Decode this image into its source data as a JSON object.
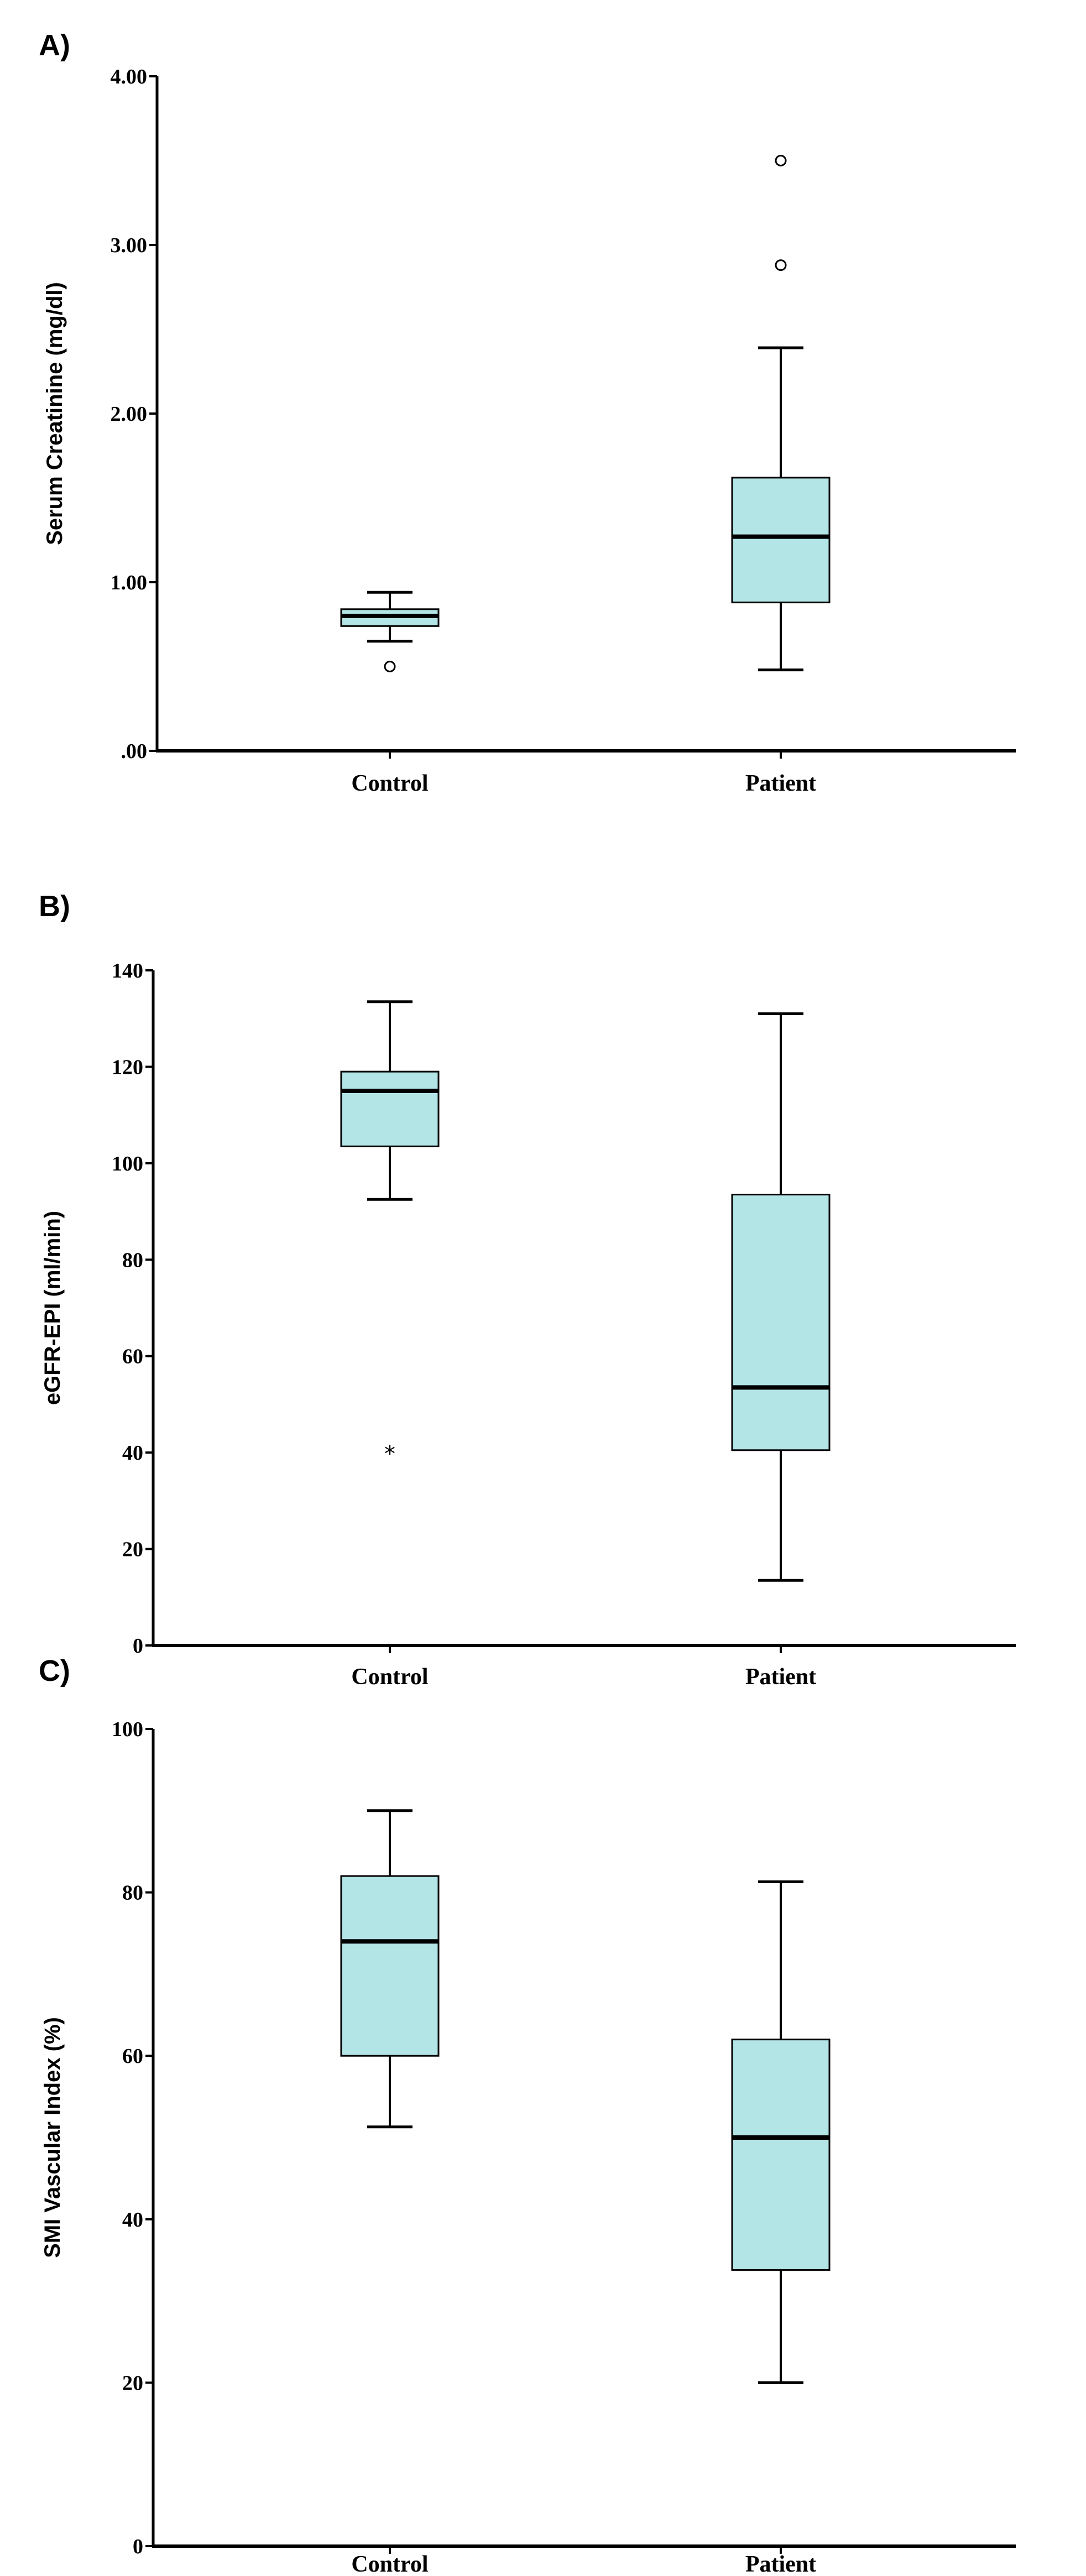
{
  "colors": {
    "box_fill": "#b3e4e6",
    "stroke": "#000000",
    "background": "#ffffff"
  },
  "chart_data": [
    {
      "type": "box",
      "panel_label": "A)",
      "title": "",
      "xlabel": "",
      "ylabel": "Serum Creatinine (mg/dl)",
      "ylim": [
        0,
        4
      ],
      "yticks": [
        {
          "value": 0,
          "label": ".00"
        },
        {
          "value": 1,
          "label": "1.00"
        },
        {
          "value": 2,
          "label": "2.00"
        },
        {
          "value": 3,
          "label": "3.00"
        },
        {
          "value": 4,
          "label": "4.00"
        }
      ],
      "categories": [
        "Control",
        "Patient"
      ],
      "boxes": [
        {
          "category": "Control",
          "whisker_low": 0.65,
          "q1": 0.74,
          "median": 0.8,
          "q3": 0.84,
          "whisker_high": 0.94,
          "outliers": [
            {
              "value": 0.5,
              "marker": "circle"
            }
          ]
        },
        {
          "category": "Patient",
          "whisker_low": 0.48,
          "q1": 0.88,
          "median": 1.27,
          "q3": 1.62,
          "whisker_high": 2.39,
          "outliers": [
            {
              "value": 2.88,
              "marker": "circle"
            },
            {
              "value": 3.5,
              "marker": "circle"
            }
          ]
        }
      ]
    },
    {
      "type": "box",
      "panel_label": "B)",
      "title": "",
      "xlabel": "",
      "ylabel": "eGFR-EPI (ml/min)",
      "ylim": [
        0,
        140
      ],
      "yticks": [
        {
          "value": 0,
          "label": "0"
        },
        {
          "value": 20,
          "label": "20"
        },
        {
          "value": 40,
          "label": "40"
        },
        {
          "value": 60,
          "label": "60"
        },
        {
          "value": 80,
          "label": "80"
        },
        {
          "value": 100,
          "label": "100"
        },
        {
          "value": 120,
          "label": "120"
        },
        {
          "value": 140,
          "label": "140"
        }
      ],
      "categories": [
        "Control",
        "Patient"
      ],
      "boxes": [
        {
          "category": "Control",
          "whisker_low": 92.5,
          "q1": 103.5,
          "median": 115,
          "q3": 119,
          "whisker_high": 133.5,
          "outliers": [
            {
              "value": 40,
              "marker": "star"
            }
          ]
        },
        {
          "category": "Patient",
          "whisker_low": 13.5,
          "q1": 40.5,
          "median": 53.5,
          "q3": 93.5,
          "whisker_high": 131,
          "outliers": []
        }
      ]
    },
    {
      "type": "box",
      "panel_label": "C)",
      "title": "",
      "xlabel": "",
      "ylabel": "SMI Vascular Index (%)",
      "ylim": [
        0,
        100
      ],
      "yticks": [
        {
          "value": 0,
          "label": "0"
        },
        {
          "value": 20,
          "label": "20"
        },
        {
          "value": 40,
          "label": "40"
        },
        {
          "value": 60,
          "label": "60"
        },
        {
          "value": 80,
          "label": "80"
        },
        {
          "value": 100,
          "label": "100"
        }
      ],
      "categories": [
        "Control",
        "Patient"
      ],
      "boxes": [
        {
          "category": "Control",
          "whisker_low": 51.3,
          "q1": 60,
          "median": 74,
          "q3": 82,
          "whisker_high": 90,
          "outliers": []
        },
        {
          "category": "Patient",
          "whisker_low": 20,
          "q1": 33.8,
          "median": 50,
          "q3": 62,
          "whisker_high": 81.3,
          "outliers": []
        }
      ]
    }
  ]
}
